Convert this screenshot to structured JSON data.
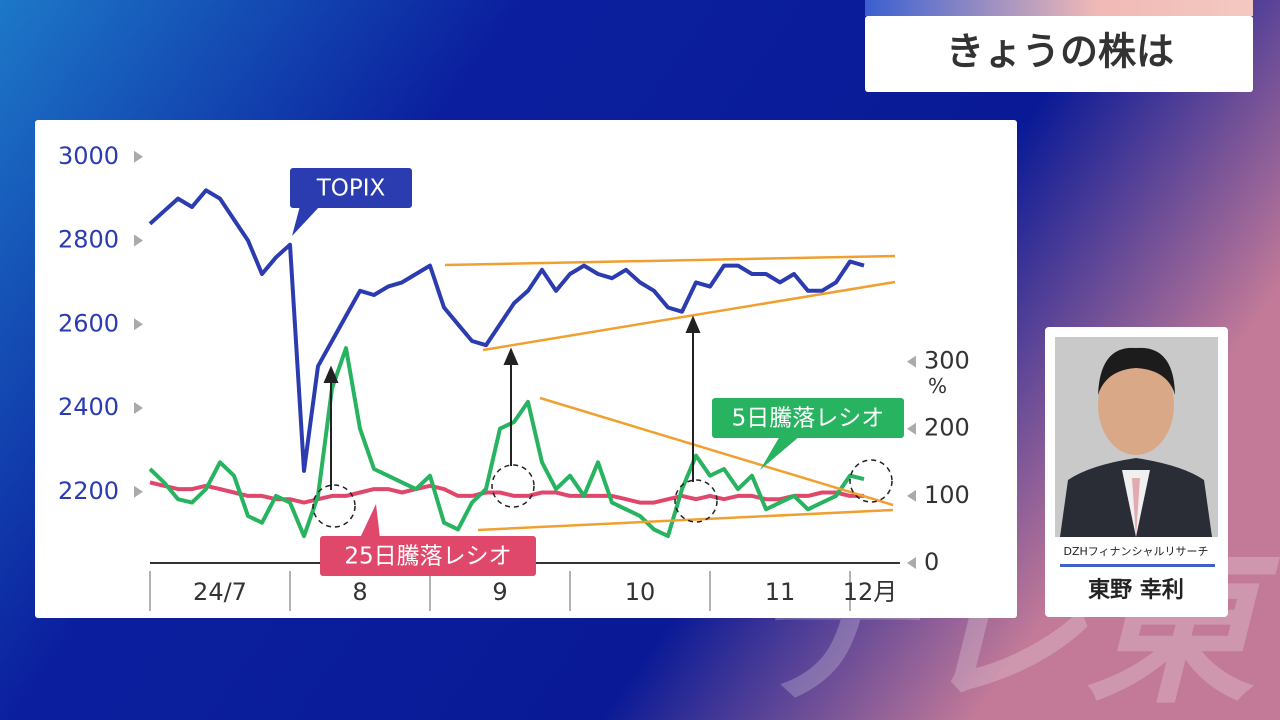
{
  "header": {
    "title": "きょうの株は"
  },
  "presenter": {
    "company": "DZHフィナンシャルリサーチ",
    "name": "東野 幸利"
  },
  "watermark": "テレ東",
  "chart_data": {
    "type": "line",
    "x": [
      7.0,
      7.1,
      7.2,
      7.3,
      7.4,
      7.5,
      7.6,
      7.7,
      7.8,
      7.9,
      8.0,
      8.1,
      8.2,
      8.3,
      8.4,
      8.5,
      8.6,
      8.7,
      8.8,
      8.9,
      9.0,
      9.1,
      9.2,
      9.3,
      9.4,
      9.5,
      9.6,
      9.7,
      9.8,
      9.9,
      10.0,
      10.1,
      10.2,
      10.3,
      10.4,
      10.5,
      10.6,
      10.7,
      10.8,
      10.9,
      11.0,
      11.1,
      11.2,
      11.3,
      11.4,
      11.5,
      11.6,
      11.7,
      11.8,
      11.9,
      12.0,
      12.1
    ],
    "xlim": [
      7,
      12.2
    ],
    "xticks": [
      {
        "value": 7,
        "label": "24/7"
      },
      8,
      9,
      10,
      11,
      {
        "value": 12,
        "label": "12月"
      }
    ],
    "ylim": [
      2030,
      3040
    ],
    "yticks": [
      2200,
      2400,
      2600,
      2800,
      3000
    ],
    "y2lim": [
      0,
      630
    ],
    "y2ticks": [
      0,
      100,
      200,
      300
    ],
    "y2label": "%",
    "series": [
      {
        "name": "TOPIX",
        "color": "#2b3bb0",
        "values": [
          2840,
          2870,
          2900,
          2880,
          2920,
          2900,
          2850,
          2800,
          2720,
          2760,
          2790,
          2250,
          2500,
          2560,
          2620,
          2680,
          2670,
          2690,
          2700,
          2720,
          2740,
          2640,
          2600,
          2560,
          2550,
          2600,
          2650,
          2680,
          2730,
          2680,
          2720,
          2740,
          2720,
          2710,
          2730,
          2700,
          2680,
          2640,
          2630,
          2700,
          2690,
          2740,
          2740,
          2720,
          2720,
          2700,
          2720,
          2680,
          2680,
          2700,
          2750,
          2740
        ]
      },
      {
        "name": "5日騰落レシオ",
        "color": "#27b35f",
        "axis": "y2",
        "values": [
          140,
          120,
          95,
          90,
          110,
          150,
          130,
          70,
          60,
          100,
          90,
          40,
          100,
          260,
          320,
          200,
          140,
          130,
          120,
          110,
          130,
          60,
          50,
          90,
          110,
          200,
          210,
          240,
          150,
          110,
          130,
          100,
          150,
          90,
          80,
          70,
          50,
          40,
          110,
          160,
          130,
          140,
          110,
          130,
          80,
          90,
          100,
          80,
          90,
          100,
          130,
          125
        ]
      },
      {
        "name": "25日騰落レシオ",
        "color": "#e0486b",
        "axis": "y2",
        "values": [
          120,
          115,
          110,
          110,
          115,
          110,
          105,
          100,
          100,
          95,
          95,
          90,
          95,
          100,
          100,
          105,
          110,
          110,
          105,
          110,
          115,
          110,
          100,
          100,
          105,
          105,
          100,
          100,
          105,
          105,
          100,
          100,
          100,
          100,
          95,
          90,
          90,
          95,
          100,
          95,
          100,
          95,
          100,
          100,
          95,
          95,
          100,
          100,
          105,
          105,
          100,
          100
        ]
      }
    ]
  }
}
